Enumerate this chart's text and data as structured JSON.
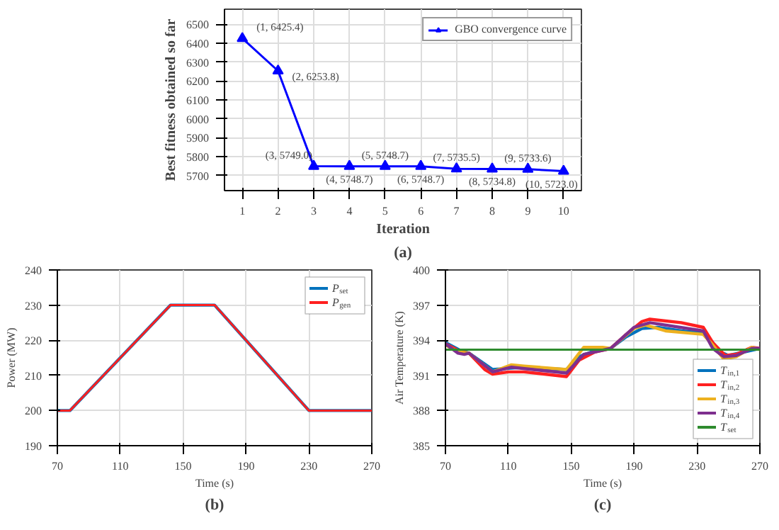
{
  "chart_data": [
    {
      "type": "line",
      "xlabel": "Iteration",
      "ylabel": "Best fitness obtained so far",
      "x": [
        1,
        2,
        3,
        4,
        5,
        6,
        7,
        8,
        9,
        10
      ],
      "xlim": [
        0.5,
        10.5
      ],
      "xticks": [
        1,
        2,
        3,
        4,
        5,
        6,
        7,
        8,
        9,
        10
      ],
      "ylim": [
        5620,
        6580
      ],
      "yticks": [
        5700,
        5800,
        5900,
        6000,
        6100,
        6200,
        6300,
        6400,
        6500
      ],
      "grid": true,
      "legend": "top right",
      "marker": "triangle",
      "line_style": "solid",
      "series": [
        {
          "name": "GBO convergence curve",
          "color": "#0000ff",
          "values": [
            6425.4,
            6253.8,
            5749.0,
            5748.7,
            5748.7,
            5748.7,
            5735.5,
            5734.8,
            5733.6,
            5723.0
          ],
          "value_labels": [
            "(1, 6425.4)",
            "(2, 6253.8)",
            "(3, 5749.0)",
            "(4, 5748.7)",
            "(5, 5748.7)",
            "(6, 5748.7)",
            "(7, 5735.5)",
            "(8, 5734.8)",
            "(9, 5733.6)",
            "(10, 5723.0)"
          ]
        }
      ],
      "annotations": [
        "(a)"
      ]
    },
    {
      "type": "line",
      "xlabel": "Time (s)",
      "ylabel": "Power (MW)",
      "xlim": [
        70,
        270
      ],
      "xticks": [
        70,
        110,
        150,
        190,
        230,
        270
      ],
      "ylim": [
        190,
        240
      ],
      "yticks": [
        190,
        200,
        210,
        220,
        230,
        240
      ],
      "grid": true,
      "legend": "top right",
      "line_style": "solid",
      "series": [
        {
          "name": "P$_{set}$",
          "color": "#0072bd",
          "x": [
            70,
            78,
            142,
            170,
            230,
            270
          ],
          "values": [
            200,
            200,
            230,
            230,
            200,
            200
          ]
        },
        {
          "name": "P$_{gen}$",
          "color": "#ff2020",
          "x": [
            70,
            78,
            142,
            170,
            230,
            270
          ],
          "values": [
            200,
            200,
            230,
            230,
            200,
            200
          ]
        }
      ],
      "annotations": [
        "(b)"
      ]
    },
    {
      "type": "line",
      "xlabel": "Time (s)",
      "ylabel": "Air Temperature (K)",
      "xlim": [
        70,
        270
      ],
      "xticks": [
        70,
        110,
        150,
        190,
        230,
        270
      ],
      "ylim": [
        385,
        400
      ],
      "yticks": [
        385,
        388,
        391,
        394,
        397,
        400
      ],
      "grid": true,
      "legend": "bottom right",
      "line_style": "solid",
      "series": [
        {
          "name": "T$_{in,1}$",
          "color": "#0072bd",
          "x": [
            70,
            80,
            85,
            100,
            110,
            120,
            147,
            155,
            165,
            175,
            185,
            195,
            205,
            220,
            235,
            245,
            250,
            260,
            270
          ],
          "values": [
            393.8,
            393.1,
            392.9,
            391.5,
            391.6,
            391.7,
            391.5,
            392.6,
            393.1,
            393.3,
            394.3,
            395.0,
            395.1,
            394.8,
            394.6,
            393.0,
            392.7,
            393.0,
            393.3
          ]
        },
        {
          "name": "T$_{in,2}$",
          "color": "#ff2020",
          "x": [
            70,
            80,
            85,
            95,
            100,
            110,
            120,
            147,
            155,
            165,
            175,
            185,
            195,
            200,
            220,
            234,
            240,
            248,
            255,
            265,
            270
          ],
          "values": [
            393.7,
            393.0,
            392.9,
            391.5,
            391.1,
            391.3,
            391.3,
            390.9,
            392.3,
            393.0,
            393.3,
            394.5,
            395.6,
            395.8,
            395.5,
            395.1,
            393.8,
            392.7,
            392.8,
            393.4,
            393.3
          ]
        },
        {
          "name": "T$_{in,3}$",
          "color": "#edb120",
          "x": [
            70,
            78,
            85,
            100,
            112,
            120,
            147,
            158,
            170,
            175,
            190,
            197,
            210,
            234,
            240,
            247,
            255,
            265,
            270
          ],
          "values": [
            393.6,
            393.0,
            392.9,
            391.3,
            391.9,
            391.8,
            391.5,
            393.4,
            393.4,
            393.3,
            395.0,
            395.3,
            394.8,
            394.5,
            393.6,
            392.4,
            392.6,
            393.4,
            393.2
          ]
        },
        {
          "name": "T$_{in,4}$",
          "color": "#7e2f8e",
          "x": [
            70,
            78,
            82,
            85,
            100,
            112,
            147,
            158,
            175,
            190,
            200,
            234,
            240,
            247,
            255,
            265,
            270
          ],
          "values": [
            393.7,
            392.9,
            392.8,
            392.9,
            391.3,
            391.7,
            391.2,
            392.8,
            393.3,
            395.1,
            395.5,
            394.8,
            393.3,
            392.6,
            392.7,
            393.3,
            393.3
          ]
        },
        {
          "name": "T$_{set}$",
          "color": "#2e8b2e",
          "x": [
            70,
            270
          ],
          "values": [
            393.2,
            393.2
          ]
        }
      ],
      "annotations": [
        "(c)"
      ]
    }
  ]
}
